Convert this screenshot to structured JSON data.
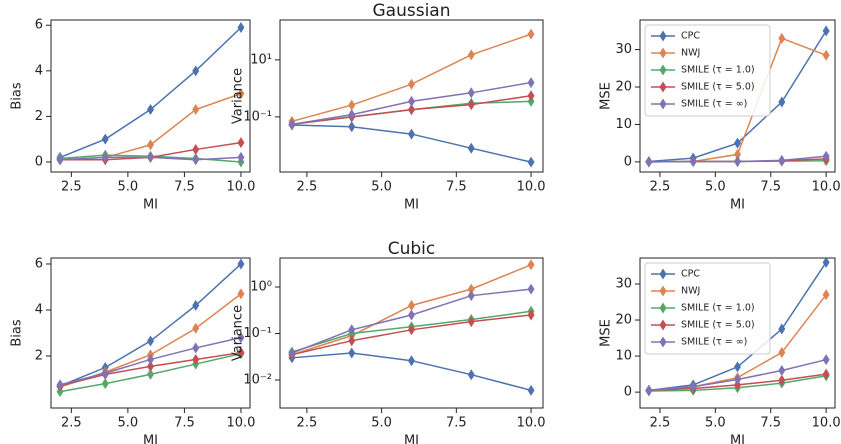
{
  "chart_data": [
    {
      "type": "line",
      "xlabel": "MI",
      "ylabel": "Bias",
      "x": [
        2,
        4,
        6,
        8,
        10
      ],
      "xlim": [
        1.6,
        10.4
      ],
      "xticks": [
        2.5,
        {
          "value": 5,
          "label": "5.0"
        },
        7.5,
        {
          "value": 10,
          "label": "10.0"
        }
      ],
      "ylim": [
        -0.44,
        6.23
      ],
      "yticks": [
        0,
        2,
        4,
        6
      ],
      "series": [
        {
          "name": "CPC",
          "color": "#4c72b0",
          "values": [
            0.2,
            1.0,
            2.3,
            4.0,
            5.9
          ]
        },
        {
          "name": "NWJ",
          "color": "#dd8452",
          "values": [
            0.1,
            0.2,
            0.75,
            2.3,
            3.0
          ]
        },
        {
          "name": "SMILE (τ = 1.0)",
          "color": "#55a868",
          "values": [
            0.15,
            0.3,
            0.25,
            0.15,
            0.0
          ]
        },
        {
          "name": "SMILE (τ = 5.0)",
          "color": "#c44e52",
          "values": [
            0.1,
            0.1,
            0.2,
            0.55,
            0.85
          ]
        },
        {
          "name": "SMILE (τ = ∞)",
          "color": "#8172b3",
          "values": [
            0.1,
            0.2,
            0.2,
            0.1,
            0.2
          ]
        }
      ]
    },
    {
      "type": "line",
      "title": "Gaussian",
      "xlabel": "MI",
      "ylabel": "Variance",
      "yscale": "log",
      "x": [
        2,
        4,
        6,
        8,
        10
      ],
      "xlim": [
        1.6,
        10.4
      ],
      "xticks": [
        2.5,
        {
          "value": 5,
          "label": "5.0"
        },
        7.5,
        {
          "value": 10,
          "label": "10.0"
        }
      ],
      "ylim": [
        0.00117,
        250
      ],
      "yticks": [
        {
          "value": 0.1,
          "label": "10⁻¹"
        },
        {
          "value": 10,
          "label": "10¹"
        }
      ],
      "series": [
        {
          "name": "CPC",
          "color": "#4c72b0",
          "values": [
            0.052,
            0.045,
            0.025,
            0.008,
            0.0026
          ]
        },
        {
          "name": "NWJ",
          "color": "#dd8452",
          "values": [
            0.07,
            0.26,
            1.4,
            15,
            80
          ]
        },
        {
          "name": "SMILE (τ = 1.0)",
          "color": "#55a868",
          "values": [
            0.055,
            0.1,
            0.18,
            0.3,
            0.35
          ]
        },
        {
          "name": "SMILE (τ = 5.0)",
          "color": "#c44e52",
          "values": [
            0.055,
            0.1,
            0.18,
            0.27,
            0.55
          ]
        },
        {
          "name": "SMILE (τ = ∞)",
          "color": "#8172b3",
          "values": [
            0.055,
            0.12,
            0.35,
            0.7,
            1.6
          ]
        }
      ]
    },
    {
      "type": "line",
      "xlabel": "MI",
      "ylabel": "MSE",
      "legend": "upper left",
      "x": [
        2,
        4,
        6,
        8,
        10
      ],
      "xlim": [
        1.6,
        10.4
      ],
      "xticks": [
        2.5,
        {
          "value": 5,
          "label": "5.0"
        },
        7.5,
        {
          "value": 10,
          "label": "10.0"
        }
      ],
      "ylim": [
        -2.7,
        37.9
      ],
      "yticks": [
        0,
        10,
        20,
        30
      ],
      "series": [
        {
          "name": "CPC",
          "color": "#4c72b0",
          "values": [
            0.1,
            1,
            5,
            16,
            35
          ]
        },
        {
          "name": "NWJ",
          "color": "#dd8452",
          "values": [
            0,
            0.1,
            2,
            33,
            28.5
          ]
        },
        {
          "name": "SMILE (τ = 1.0)",
          "color": "#55a868",
          "values": [
            0,
            0.1,
            0.1,
            0.2,
            0.3
          ]
        },
        {
          "name": "SMILE (τ = 5.0)",
          "color": "#c44e52",
          "values": [
            0,
            0.1,
            0.1,
            0.3,
            0.8
          ]
        },
        {
          "name": "SMILE (τ = ∞)",
          "color": "#8172b3",
          "values": [
            0,
            0.1,
            0.1,
            0.4,
            1.5
          ]
        }
      ]
    },
    {
      "type": "line",
      "xlabel": "MI",
      "ylabel": "Bias",
      "x": [
        2,
        4,
        6,
        8,
        10
      ],
      "xlim": [
        1.6,
        10.4
      ],
      "xticks": [
        2.5,
        {
          "value": 5,
          "label": "5.0"
        },
        7.5,
        {
          "value": 10,
          "label": "10.0"
        }
      ],
      "ylim": [
        -0.26,
        6.26
      ],
      "yticks": [
        2,
        4,
        6
      ],
      "series": [
        {
          "name": "CPC",
          "color": "#4c72b0",
          "values": [
            0.7,
            1.5,
            2.65,
            4.2,
            6.0
          ]
        },
        {
          "name": "NWJ",
          "color": "#dd8452",
          "values": [
            0.65,
            1.3,
            2.05,
            3.2,
            4.7
          ]
        },
        {
          "name": "SMILE (τ = 1.0)",
          "color": "#55a868",
          "values": [
            0.45,
            0.8,
            1.2,
            1.65,
            2.1
          ]
        },
        {
          "name": "SMILE (τ = 5.0)",
          "color": "#c44e52",
          "values": [
            0.7,
            1.2,
            1.55,
            1.85,
            2.15
          ]
        },
        {
          "name": "SMILE (τ = ∞)",
          "color": "#8172b3",
          "values": [
            0.75,
            1.25,
            1.85,
            2.35,
            2.8
          ]
        }
      ]
    },
    {
      "type": "line",
      "title": "Cubic",
      "xlabel": "MI",
      "ylabel": "Variance",
      "yscale": "log",
      "x": [
        2,
        4,
        6,
        8,
        10
      ],
      "xlim": [
        1.6,
        10.4
      ],
      "xticks": [
        2.5,
        {
          "value": 5,
          "label": "5.0"
        },
        7.5,
        {
          "value": 10,
          "label": "10.0"
        }
      ],
      "ylim": [
        0.0025,
        4.2
      ],
      "yticks": [
        {
          "value": 0.01,
          "label": "10⁻²"
        },
        {
          "value": 0.1,
          "label": "10⁻¹"
        },
        {
          "value": 1,
          "label": "10⁰"
        }
      ],
      "series": [
        {
          "name": "CPC",
          "color": "#4c72b0",
          "values": [
            0.03,
            0.038,
            0.026,
            0.013,
            0.006
          ]
        },
        {
          "name": "NWJ",
          "color": "#dd8452",
          "values": [
            0.035,
            0.09,
            0.4,
            0.9,
            3
          ]
        },
        {
          "name": "SMILE (τ = 1.0)",
          "color": "#55a868",
          "values": [
            0.04,
            0.1,
            0.14,
            0.2,
            0.3
          ]
        },
        {
          "name": "SMILE (τ = 5.0)",
          "color": "#c44e52",
          "values": [
            0.035,
            0.07,
            0.12,
            0.18,
            0.25
          ]
        },
        {
          "name": "SMILE (τ = ∞)",
          "color": "#8172b3",
          "values": [
            0.038,
            0.12,
            0.25,
            0.65,
            0.9
          ]
        }
      ]
    },
    {
      "type": "line",
      "xlabel": "MI",
      "ylabel": "MSE",
      "legend": "upper left",
      "x": [
        2,
        4,
        6,
        8,
        10
      ],
      "xlim": [
        1.6,
        10.4
      ],
      "xticks": [
        2.5,
        {
          "value": 5,
          "label": "5.0"
        },
        7.5,
        {
          "value": 10,
          "label": "10.0"
        }
      ],
      "ylim": [
        -4.4,
        37.2
      ],
      "yticks": [
        0,
        10,
        20,
        30
      ],
      "series": [
        {
          "name": "CPC",
          "color": "#4c72b0",
          "values": [
            0.5,
            2,
            7,
            17.5,
            36
          ]
        },
        {
          "name": "NWJ",
          "color": "#dd8452",
          "values": [
            0.5,
            1.5,
            4,
            11,
            27
          ]
        },
        {
          "name": "SMILE (τ = 1.0)",
          "color": "#55a868",
          "values": [
            0.3,
            0.5,
            1.2,
            2.5,
            4.5
          ]
        },
        {
          "name": "SMILE (τ = 5.0)",
          "color": "#c44e52",
          "values": [
            0.5,
            1,
            2,
            3.3,
            5
          ]
        },
        {
          "name": "SMILE (τ = ∞)",
          "color": "#8172b3",
          "values": [
            0.5,
            1.5,
            3.5,
            6,
            9
          ]
        }
      ]
    }
  ]
}
